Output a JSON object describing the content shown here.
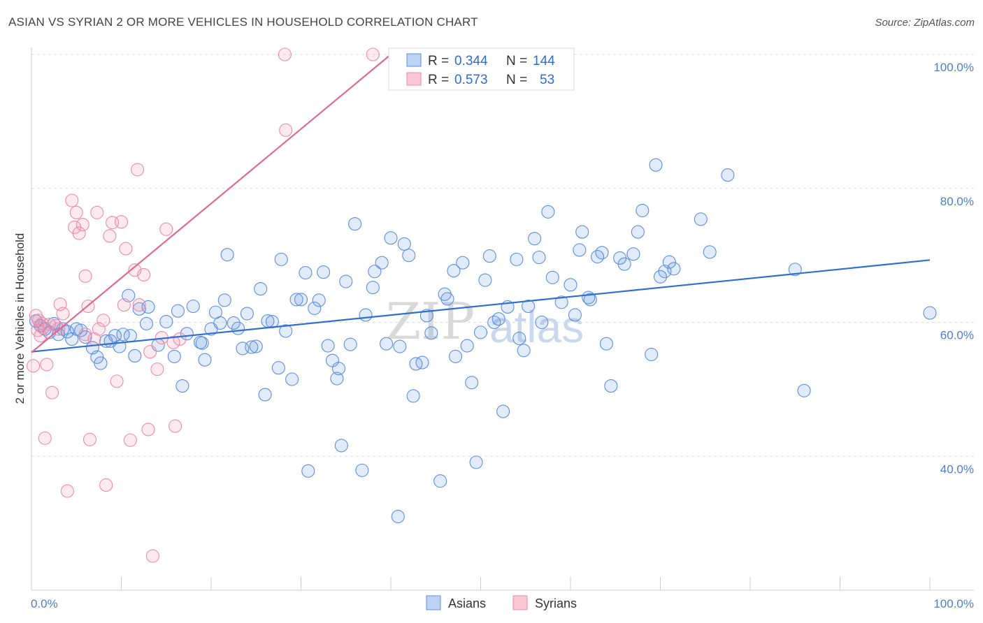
{
  "title": "ASIAN VS SYRIAN 2 OR MORE VEHICLES IN HOUSEHOLD CORRELATION CHART",
  "source": "Source: ZipAtlas.com",
  "watermark": {
    "zip": "ZIP",
    "atlas": "atlas"
  },
  "colors": {
    "asians": "#5b8fe0",
    "syrians": "#ee8aa8",
    "asians_line": "#2e6fd0",
    "syrians_line": "#e06a8e"
  },
  "legend": {
    "rows": [
      {
        "r_label": "R =",
        "r_value": "0.344",
        "n_label": "N =",
        "n_value": "144"
      },
      {
        "r_label": "R =",
        "r_value": "0.573",
        "n_label": "N =",
        "n_value": "53"
      }
    ]
  },
  "bottom_legend": [
    "Asians",
    "Syrians"
  ],
  "chart_data": {
    "type": "scatter",
    "ylabel": "2 or more Vehicles in Household",
    "xlim": [
      0,
      100
    ],
    "ylim": [
      20,
      100
    ],
    "x_tick_labels": [
      "0.0%",
      "100.0%"
    ],
    "y_ticks": [
      40,
      60,
      80,
      100
    ],
    "y_tick_labels": [
      "40.0%",
      "60.0%",
      "80.0%",
      "100.0%"
    ],
    "grid": true,
    "series": [
      {
        "name": "Asians",
        "trend": {
          "x": [
            0,
            100
          ],
          "y": [
            55.6,
            69.3
          ]
        },
        "points": [
          [
            0.5,
            60.2
          ],
          [
            1,
            59.5
          ],
          [
            1.5,
            59
          ],
          [
            2,
            58.5
          ],
          [
            2.5,
            59.8
          ],
          [
            3,
            58.2
          ],
          [
            3.5,
            59
          ],
          [
            4,
            58.6
          ],
          [
            4.5,
            57.5
          ],
          [
            5,
            59
          ],
          [
            5.5,
            58.8
          ],
          [
            6,
            57.8
          ],
          [
            6.8,
            56.2
          ],
          [
            7.3,
            54.8
          ],
          [
            7.7,
            53.9
          ],
          [
            8.3,
            57.2
          ],
          [
            8.8,
            57.2
          ],
          [
            9.3,
            58
          ],
          [
            9.8,
            56.4
          ],
          [
            10.2,
            58.2
          ],
          [
            10.8,
            64
          ],
          [
            11,
            58
          ],
          [
            11.5,
            55
          ],
          [
            12,
            62
          ],
          [
            12.8,
            59.8
          ],
          [
            13,
            62.3
          ],
          [
            14.1,
            56.6
          ],
          [
            15,
            60.1
          ],
          [
            15.9,
            54.9
          ],
          [
            16.3,
            61.7
          ],
          [
            16.8,
            50.5
          ],
          [
            17.3,
            58.3
          ],
          [
            18,
            62.4
          ],
          [
            18.8,
            57
          ],
          [
            19,
            56.9
          ],
          [
            19.3,
            54.4
          ],
          [
            20,
            59
          ],
          [
            20.5,
            61.5
          ],
          [
            21,
            59.9
          ],
          [
            21.5,
            63.3
          ],
          [
            21.8,
            70.1
          ],
          [
            22.5,
            59.9
          ],
          [
            23,
            59.1
          ],
          [
            23.5,
            56.1
          ],
          [
            24,
            61.3
          ],
          [
            24.5,
            56.3
          ],
          [
            25,
            56.4
          ],
          [
            25.5,
            65
          ],
          [
            26,
            49.2
          ],
          [
            26.3,
            60.2
          ],
          [
            26.8,
            60.1
          ],
          [
            27.5,
            53.2
          ],
          [
            27.8,
            69.4
          ],
          [
            28.3,
            58.7
          ],
          [
            29,
            51.5
          ],
          [
            29.5,
            63.4
          ],
          [
            30,
            63.4
          ],
          [
            30.5,
            67.4
          ],
          [
            30.8,
            37.8
          ],
          [
            31.5,
            62.1
          ],
          [
            32,
            63.3
          ],
          [
            32.5,
            67.5
          ],
          [
            33,
            56.5
          ],
          [
            33.5,
            54.3
          ],
          [
            34,
            51.6
          ],
          [
            34.2,
            53.1
          ],
          [
            34.5,
            41.6
          ],
          [
            35,
            66.1
          ],
          [
            35.5,
            56.7
          ],
          [
            36,
            74.7
          ],
          [
            36.8,
            37.9
          ],
          [
            37.2,
            61.1
          ],
          [
            38,
            65.2
          ],
          [
            38.2,
            67.6
          ],
          [
            39,
            68.9
          ],
          [
            39.5,
            56.8
          ],
          [
            40,
            72.6
          ],
          [
            40.8,
            31
          ],
          [
            41,
            56.4
          ],
          [
            41.5,
            71.7
          ],
          [
            42,
            70
          ],
          [
            42.5,
            49
          ],
          [
            42.8,
            53.8
          ],
          [
            43.5,
            54
          ],
          [
            44,
            61
          ],
          [
            44.5,
            58.4
          ],
          [
            45.5,
            36.3
          ],
          [
            46,
            64.2
          ],
          [
            46.3,
            63.5
          ],
          [
            47,
            67.7
          ],
          [
            47.2,
            54.9
          ],
          [
            48,
            68.9
          ],
          [
            48.5,
            56.5
          ],
          [
            49,
            51
          ],
          [
            49.5,
            39.1
          ],
          [
            50,
            58.5
          ],
          [
            50.5,
            66.3
          ],
          [
            51,
            69.9
          ],
          [
            51.5,
            60
          ],
          [
            52,
            60.5
          ],
          [
            52.5,
            46.7
          ],
          [
            53,
            62.3
          ],
          [
            54,
            69.4
          ],
          [
            54.3,
            57.6
          ],
          [
            54.8,
            55.8
          ],
          [
            55.3,
            62.4
          ],
          [
            56,
            72.5
          ],
          [
            56.5,
            69.7
          ],
          [
            56.8,
            60
          ],
          [
            57.5,
            76.5
          ],
          [
            58,
            66.7
          ],
          [
            59,
            63
          ],
          [
            60,
            65.6
          ],
          [
            60.5,
            61.1
          ],
          [
            61,
            70.8
          ],
          [
            61.3,
            73.5
          ],
          [
            62,
            63.7
          ],
          [
            62.2,
            63.4
          ],
          [
            63,
            69.8
          ],
          [
            63.5,
            70.4
          ],
          [
            64,
            56.8
          ],
          [
            64.5,
            50.5
          ],
          [
            65.5,
            69.6
          ],
          [
            66,
            68.7
          ],
          [
            67,
            70.2
          ],
          [
            67.5,
            73.5
          ],
          [
            68,
            76.7
          ],
          [
            69,
            55.2
          ],
          [
            69.5,
            83.5
          ],
          [
            70,
            66.8
          ],
          [
            70.5,
            67.6
          ],
          [
            71,
            69
          ],
          [
            71.5,
            68
          ],
          [
            74.5,
            75.4
          ],
          [
            75.5,
            70.5
          ],
          [
            77.5,
            82
          ],
          [
            85,
            67.9
          ],
          [
            86,
            49.8
          ],
          [
            100,
            61.4
          ]
        ]
      },
      {
        "name": "Syrians",
        "trend": {
          "x": [
            0,
            40
          ],
          "y": [
            55.5,
            100
          ]
        },
        "points": [
          [
            0.2,
            53.5
          ],
          [
            0.5,
            61
          ],
          [
            0.7,
            58.8
          ],
          [
            1,
            58
          ],
          [
            1.3,
            59.2
          ],
          [
            1.7,
            53.7
          ],
          [
            2,
            59.7
          ],
          [
            2.3,
            49.5
          ],
          [
            2.7,
            59.5
          ],
          [
            3,
            59
          ],
          [
            3.2,
            62.7
          ],
          [
            3.5,
            61.3
          ],
          [
            4,
            34.8
          ],
          [
            4.5,
            78.2
          ],
          [
            4.8,
            74.2
          ],
          [
            5,
            76.4
          ],
          [
            5.3,
            73.3
          ],
          [
            5.7,
            74.6
          ],
          [
            6,
            66.9
          ],
          [
            6.3,
            62.4
          ],
          [
            6.5,
            42.5
          ],
          [
            7,
            57.5
          ],
          [
            7.3,
            76.4
          ],
          [
            7.5,
            59
          ],
          [
            8,
            60.3
          ],
          [
            8.3,
            35.7
          ],
          [
            8.7,
            72.9
          ],
          [
            9,
            74.9
          ],
          [
            9.5,
            51.2
          ],
          [
            10,
            75
          ],
          [
            10.3,
            62.6
          ],
          [
            10.5,
            71
          ],
          [
            11,
            42.4
          ],
          [
            11.5,
            67.8
          ],
          [
            11.8,
            82.8
          ],
          [
            12,
            62.6
          ],
          [
            12.5,
            67.1
          ],
          [
            13,
            44
          ],
          [
            13.2,
            55.6
          ],
          [
            13.5,
            25.1
          ],
          [
            14,
            53
          ],
          [
            14.5,
            57.7
          ],
          [
            15,
            73.9
          ],
          [
            15.8,
            57
          ],
          [
            16,
            44.5
          ],
          [
            16.5,
            57.5
          ],
          [
            28.2,
            100
          ],
          [
            28.3,
            88.7
          ],
          [
            38,
            100
          ],
          [
            1.5,
            42.7
          ],
          [
            1.2,
            59.8
          ],
          [
            0.8,
            60.3
          ],
          [
            6,
            58.2
          ]
        ]
      }
    ]
  }
}
